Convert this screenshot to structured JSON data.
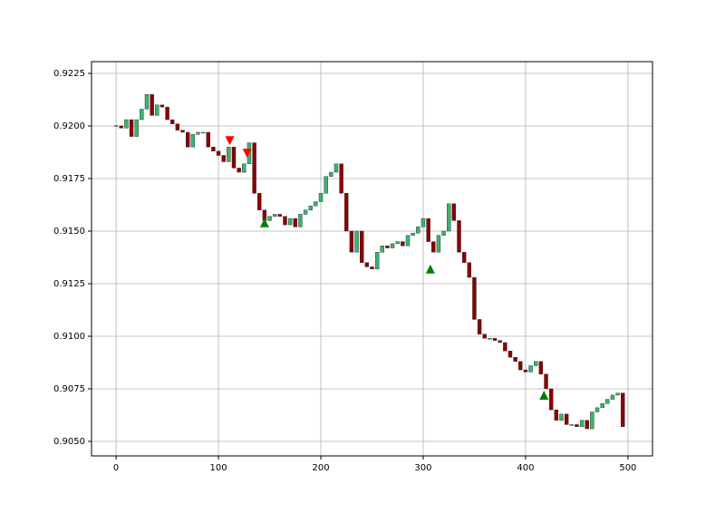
{
  "chart_data": {
    "type": "candlestick",
    "x": [
      0,
      5,
      10,
      15,
      20,
      25,
      30,
      35,
      40,
      45,
      50,
      55,
      60,
      65,
      70,
      75,
      80,
      85,
      90,
      95,
      100,
      105,
      110,
      115,
      120,
      125,
      130,
      135,
      140,
      145,
      150,
      155,
      160,
      165,
      170,
      175,
      180,
      185,
      190,
      195,
      200,
      205,
      210,
      215,
      220,
      225,
      230,
      235,
      240,
      245,
      250,
      255,
      260,
      265,
      270,
      275,
      280,
      285,
      290,
      295,
      300,
      305,
      310,
      315,
      320,
      325,
      330,
      335,
      340,
      345,
      350,
      355,
      360,
      365,
      370,
      375,
      380,
      385,
      390,
      395,
      400,
      405,
      410,
      415,
      420,
      425,
      430,
      435,
      440,
      445,
      450,
      455,
      460,
      465,
      470,
      475,
      480,
      485,
      490,
      495
    ],
    "close": [
      0.92,
      0.9199,
      0.9203,
      0.9195,
      0.9203,
      0.9208,
      0.9215,
      0.9205,
      0.921,
      0.9209,
      0.9203,
      0.9201,
      0.9198,
      0.9197,
      0.919,
      0.9196,
      0.9197,
      0.9197,
      0.919,
      0.9188,
      0.9186,
      0.9183,
      0.919,
      0.918,
      0.9178,
      0.9182,
      0.9192,
      0.9168,
      0.916,
      0.9155,
      0.9157,
      0.9158,
      0.9157,
      0.9153,
      0.9156,
      0.9152,
      0.9158,
      0.916,
      0.9162,
      0.9164,
      0.9168,
      0.9176,
      0.9178,
      0.9182,
      0.9168,
      0.915,
      0.914,
      0.915,
      0.9135,
      0.9133,
      0.9132,
      0.914,
      0.9143,
      0.9142,
      0.9144,
      0.9145,
      0.9143,
      0.9148,
      0.9149,
      0.9152,
      0.9156,
      0.9145,
      0.914,
      0.9148,
      0.915,
      0.9163,
      0.9155,
      0.914,
      0.9135,
      0.9128,
      0.9108,
      0.9101,
      0.9099,
      0.9099,
      0.9098,
      0.9097,
      0.9093,
      0.909,
      0.9088,
      0.9084,
      0.9083,
      0.9086,
      0.9088,
      0.9082,
      0.9075,
      0.9065,
      0.906,
      0.9063,
      0.9058,
      0.9058,
      0.9057,
      0.906,
      0.9056,
      0.9064,
      0.9066,
      0.9068,
      0.907,
      0.9072,
      0.9073,
      0.9057
    ],
    "up_color": "#3cb371",
    "down_color": "#8b0000",
    "signals": [
      {
        "x": 111,
        "y": 0.9193,
        "dir": "down",
        "color": "#ff0000"
      },
      {
        "x": 128,
        "y": 0.9187,
        "dir": "down",
        "color": "#ff0000"
      },
      {
        "x": 145,
        "y": 0.9154,
        "dir": "up",
        "color": "#008000"
      },
      {
        "x": 307,
        "y": 0.9132,
        "dir": "up",
        "color": "#008000"
      },
      {
        "x": 418,
        "y": 0.9072,
        "dir": "up",
        "color": "#008000"
      }
    ],
    "xlim": [
      -24,
      524
    ],
    "ylim": [
      0.90431,
      0.92306
    ],
    "xticks": [
      0,
      100,
      200,
      300,
      400,
      500
    ],
    "yticks": [
      {
        "value": 0.905,
        "label": "0.9050"
      },
      {
        "value": 0.9075,
        "label": "0.9075"
      },
      {
        "value": 0.91,
        "label": "0.9100"
      },
      {
        "value": 0.9125,
        "label": "0.9125"
      },
      {
        "value": 0.915,
        "label": "0.9150"
      },
      {
        "value": 0.9175,
        "label": "0.9175"
      },
      {
        "value": 0.92,
        "label": "0.9200"
      },
      {
        "value": 0.9225,
        "label": "0.9225"
      }
    ],
    "grid": true
  }
}
